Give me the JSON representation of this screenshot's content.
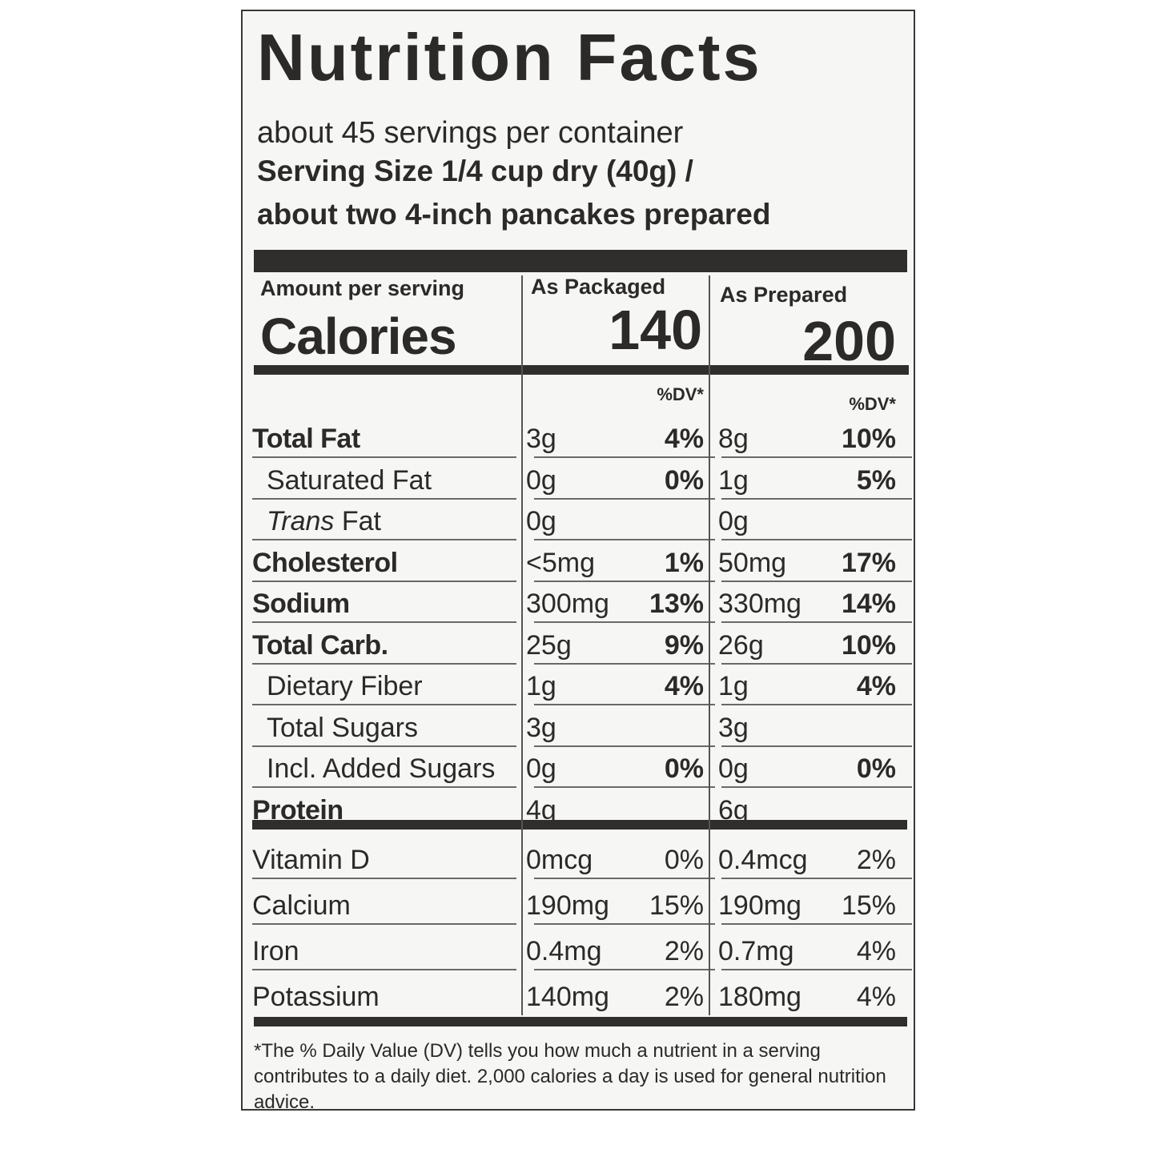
{
  "label": {
    "title": "Nutrition Facts",
    "servings_per_container": "about 45 servings per container",
    "serving_size_line1": "Serving Size 1/4 cup dry (40g) /",
    "serving_size_line2": "about two 4-inch pancakes prepared",
    "amount_per_serving": "Amount per serving",
    "calories_label": "Calories",
    "col_packaged": "As Packaged",
    "col_prepared": "As Prepared",
    "calories_packaged": "140",
    "calories_prepared": "200",
    "dv_header": "%DV*"
  },
  "nutrients": [
    {
      "name": "Total Fat",
      "pkg_amount": "3g",
      "pkg_dv": "4%",
      "prep_amount": "8g",
      "prep_dv": "10%"
    },
    {
      "name": "Saturated Fat",
      "pkg_amount": "0g",
      "pkg_dv": "0%",
      "prep_amount": "1g",
      "prep_dv": "5%"
    },
    {
      "name_italic": "Trans",
      "name_rest": " Fat",
      "pkg_amount": "0g",
      "pkg_dv": "",
      "prep_amount": "0g",
      "prep_dv": ""
    },
    {
      "name": "Cholesterol",
      "pkg_amount": "<5mg",
      "pkg_dv": "1%",
      "prep_amount": "50mg",
      "prep_dv": "17%"
    },
    {
      "name": "Sodium",
      "pkg_amount": "300mg",
      "pkg_dv": "13%",
      "prep_amount": "330mg",
      "prep_dv": "14%"
    },
    {
      "name": "Total Carb.",
      "pkg_amount": "25g",
      "pkg_dv": "9%",
      "prep_amount": "26g",
      "prep_dv": "10%"
    },
    {
      "name": "Dietary Fiber",
      "pkg_amount": "1g",
      "pkg_dv": "4%",
      "prep_amount": "1g",
      "prep_dv": "4%"
    },
    {
      "name": "Total Sugars",
      "pkg_amount": "3g",
      "pkg_dv": "",
      "prep_amount": "3g",
      "prep_dv": ""
    },
    {
      "name": "Incl. Added Sugars",
      "pkg_amount": "0g",
      "pkg_dv": "0%",
      "prep_amount": "0g",
      "prep_dv": "0%"
    },
    {
      "name": "Protein",
      "pkg_amount": "4g",
      "pkg_dv": "",
      "prep_amount": "6g",
      "prep_dv": ""
    }
  ],
  "vitamins": [
    {
      "name": "Vitamin D",
      "pkg_amount": "0mcg",
      "pkg_dv": "0%",
      "prep_amount": "0.4mcg",
      "prep_dv": "2%"
    },
    {
      "name": "Calcium",
      "pkg_amount": "190mg",
      "pkg_dv": "15%",
      "prep_amount": "190mg",
      "prep_dv": "15%"
    },
    {
      "name": "Iron",
      "pkg_amount": "0.4mg",
      "pkg_dv": "2%",
      "prep_amount": "0.7mg",
      "prep_dv": "4%"
    },
    {
      "name": "Potassium",
      "pkg_amount": "140mg",
      "pkg_dv": "2%",
      "prep_amount": "180mg",
      "prep_dv": "4%"
    }
  ],
  "footnote": "*The % Daily Value (DV) tells you how much a nutrient in a serving contributes to a daily diet. 2,000 calories a day is used for general nutrition advice."
}
